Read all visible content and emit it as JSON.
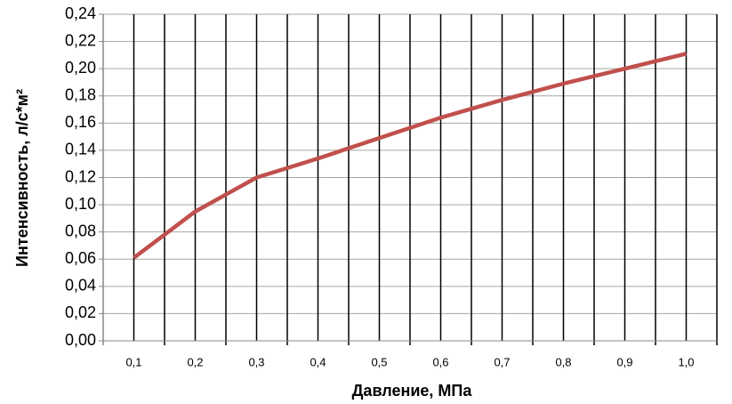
{
  "chart_data": {
    "type": "line",
    "x_label": "Давление, МПа",
    "y_label": "Интенсивность, л/с*м²",
    "categories": [
      "0,1",
      "0,2",
      "0,3",
      "0,4",
      "0,5",
      "0,6",
      "0,7",
      "0,8",
      "0,9",
      "1,0"
    ],
    "values": [
      0.061,
      0.095,
      0.12,
      0.134,
      0.149,
      0.164,
      0.177,
      0.189,
      0.2,
      0.211
    ],
    "color": "#c0504d",
    "ylim": [
      0,
      0.24
    ],
    "yticks": [
      {
        "value": 0,
        "label": "0,00"
      },
      {
        "value": 0.02,
        "label": "0,02"
      },
      {
        "value": 0.04,
        "label": "0,04"
      },
      {
        "value": 0.06,
        "label": "0,06"
      },
      {
        "value": 0.08,
        "label": "0,08"
      },
      {
        "value": 0.1,
        "label": "0,10"
      },
      {
        "value": 0.12,
        "label": "0,12"
      },
      {
        "value": 0.14,
        "label": "0,14"
      },
      {
        "value": 0.16,
        "label": "0,16"
      },
      {
        "value": 0.18,
        "label": "0,18"
      },
      {
        "value": 0.2,
        "label": "0,20"
      },
      {
        "value": 0.22,
        "label": "0,22"
      },
      {
        "value": 0.24,
        "label": "0,24"
      }
    ],
    "grid": true
  }
}
